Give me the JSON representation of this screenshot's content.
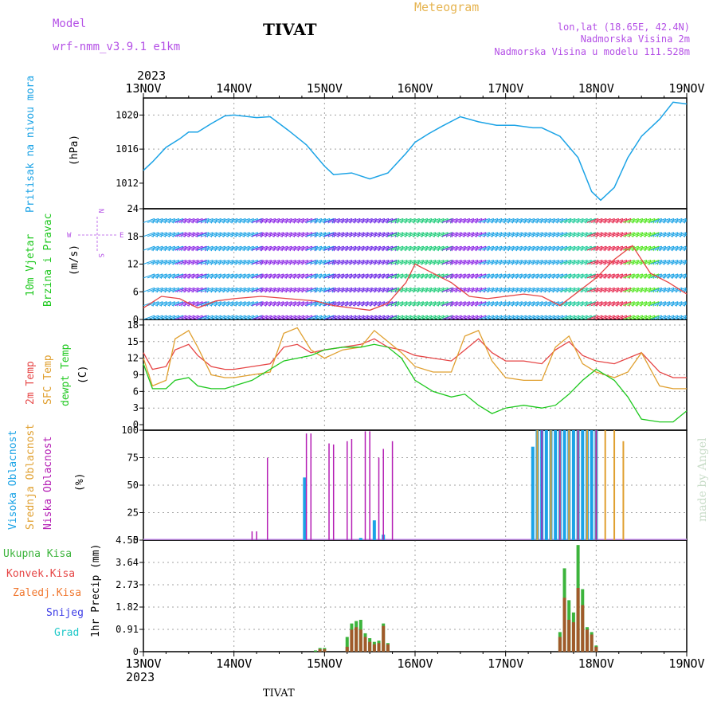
{
  "header": {
    "model_label": "Model",
    "model_name": "wrf-nmm_v3.9.1 e1km",
    "station": "TIVAT",
    "meteogram_label": "Meteogram",
    "coords": "lon,lat (18.65E, 42.4N)",
    "elevation": "Nadmorska Visina 2m",
    "model_elevation": "Nadmorska Visina u modelu 111.528m",
    "footer_station": "TIVAT",
    "watermark": "made by Angel"
  },
  "time_axis": {
    "year": "2023",
    "ticks": [
      "13NOV",
      "14NOV",
      "15NOV",
      "16NOV",
      "17NOV",
      "18NOV",
      "19NOV"
    ],
    "range_days": [
      0,
      6
    ]
  },
  "colors": {
    "pressure": "#1ba3e6",
    "temp2m": "#e64646",
    "sfc_temp": "#e0a030",
    "dewpoint": "#1ec81e",
    "visoka": "#1ba3e6",
    "srednja": "#e0a030",
    "niska": "#b41eb4",
    "ukupna": "#3cb43c",
    "konvek": "#e64646",
    "zaledj": "#f07830",
    "snijeg": "#3c3ce6",
    "grad": "#1ec8c8",
    "wind_title": "#1ec81e",
    "compass": "#b450e6",
    "model": "#b450e6",
    "meteogram": "#e6b450"
  },
  "panels": {
    "pressure": {
      "title": "Pritisak na nivou mora",
      "unit": "(hPa)",
      "ticks": [
        "1012",
        "1016",
        "1020"
      ]
    },
    "wind": {
      "title_line1": "10m Vjetar",
      "title_line2": "Brzina i Pravac",
      "unit": "(m/s)",
      "ticks": [
        "0",
        "6",
        "12",
        "18",
        "24"
      ],
      "compass": {
        "n": "N",
        "s": "S",
        "e": "E",
        "w": "W"
      }
    },
    "temperature": {
      "label_temp": "2m Temp",
      "label_sfc": "SFC Temp",
      "label_dew": "dewpt Temp",
      "unit": "(C)",
      "ticks": [
        "0",
        "3",
        "6",
        "9",
        "12",
        "15",
        "18"
      ]
    },
    "clouds": {
      "label_visoka": "Visoka Oblacnost",
      "label_srednja": "Srednja Oblacnost",
      "label_niska": "Niska Oblacnost",
      "unit": "(%)",
      "ticks": [
        "0",
        "25",
        "50",
        "75",
        "100"
      ]
    },
    "precip": {
      "label_ukupna": "Ukupna Kisa",
      "label_konvek": "Konvek.Kisa",
      "label_zaledj": "Zaledj.Kisa",
      "label_snijeg": "Snijeg",
      "label_grad": "Grad",
      "unit": "1hr Precip (mm)",
      "ticks": [
        "0",
        "0.91",
        "1.82",
        "2.73",
        "3.64",
        "4.55"
      ]
    }
  },
  "chart_data": [
    {
      "type": "line",
      "name": "pressure",
      "ylim": [
        1009,
        1022
      ],
      "x": [
        0,
        0.1,
        0.25,
        0.4,
        0.5,
        0.6,
        0.75,
        0.9,
        1.0,
        1.25,
        1.4,
        1.6,
        1.8,
        2.0,
        2.1,
        2.3,
        2.5,
        2.7,
        2.9,
        3.0,
        3.15,
        3.3,
        3.5,
        3.7,
        3.9,
        4.1,
        4.3,
        4.4,
        4.6,
        4.8,
        4.95,
        5.05,
        5.2,
        5.35,
        5.5,
        5.7,
        5.85,
        6.0
      ],
      "y": [
        1013.5,
        1014.5,
        1016.2,
        1017.2,
        1018.0,
        1018.0,
        1019.0,
        1019.9,
        1020.0,
        1019.7,
        1019.8,
        1018.2,
        1016.5,
        1014.0,
        1013.0,
        1013.2,
        1012.5,
        1013.2,
        1015.5,
        1016.8,
        1017.8,
        1018.7,
        1019.8,
        1019.2,
        1018.8,
        1018.8,
        1018.5,
        1018.5,
        1017.5,
        1015.0,
        1011.0,
        1010.0,
        1011.5,
        1015.0,
        1017.5,
        1019.5,
        1021.5,
        1021.3
      ]
    },
    {
      "type": "line",
      "name": "wind_speed",
      "ylim": [
        0,
        24
      ],
      "x": [
        0,
        0.2,
        0.4,
        0.6,
        0.8,
        1.0,
        1.3,
        1.6,
        1.9,
        2.1,
        2.3,
        2.5,
        2.7,
        2.9,
        3.0,
        3.2,
        3.4,
        3.6,
        3.8,
        4.0,
        4.2,
        4.4,
        4.6,
        4.8,
        5.0,
        5.2,
        5.4,
        5.6,
        5.8,
        6.0
      ],
      "y": [
        2.5,
        5.0,
        4.5,
        2.5,
        4.0,
        4.5,
        5.0,
        4.5,
        4.0,
        3.0,
        2.5,
        2.0,
        3.5,
        8.0,
        12.0,
        10.0,
        8.0,
        5.0,
        4.5,
        5.0,
        5.5,
        5.0,
        3.0,
        6.0,
        9.0,
        13.0,
        16.0,
        10.0,
        8.0,
        5.5
      ]
    },
    {
      "type": "line",
      "name": "temperatures",
      "ylim": [
        -1,
        19
      ],
      "x": [
        0,
        0.1,
        0.25,
        0.35,
        0.5,
        0.6,
        0.75,
        0.9,
        1.0,
        1.2,
        1.4,
        1.55,
        1.7,
        1.85,
        2.0,
        2.2,
        2.4,
        2.55,
        2.7,
        2.85,
        3.0,
        3.2,
        3.4,
        3.55,
        3.7,
        3.85,
        4.0,
        4.2,
        4.4,
        4.55,
        4.7,
        4.85,
        5.0,
        5.2,
        5.35,
        5.5,
        5.7,
        5.85,
        6.0
      ],
      "series": [
        {
          "name": "2m Temp",
          "values": [
            13.0,
            10.0,
            10.5,
            13.5,
            14.5,
            12.5,
            10.5,
            10.0,
            10.0,
            10.5,
            11.0,
            14.0,
            14.5,
            13.0,
            13.5,
            14.0,
            14.5,
            15.5,
            14.0,
            13.5,
            12.5,
            12.0,
            11.5,
            13.5,
            15.5,
            13.0,
            11.5,
            11.5,
            11.0,
            13.5,
            15.0,
            12.5,
            11.5,
            11.0,
            12.0,
            13.0,
            9.5,
            8.5,
            8.5
          ]
        },
        {
          "name": "SFC Temp",
          "values": [
            12.0,
            7.0,
            8.0,
            15.5,
            17.0,
            14.0,
            9.0,
            8.5,
            8.5,
            9.0,
            9.5,
            16.5,
            17.5,
            13.5,
            12.0,
            13.5,
            14.0,
            17.0,
            15.0,
            13.0,
            10.5,
            9.5,
            9.5,
            16.0,
            17.0,
            11.5,
            8.5,
            8.0,
            8.0,
            14.0,
            16.0,
            11.0,
            9.5,
            8.5,
            9.5,
            13.0,
            7.0,
            6.5,
            6.5
          ]
        },
        {
          "name": "dewpt Temp",
          "values": [
            11.0,
            6.5,
            6.5,
            8.0,
            8.5,
            7.0,
            6.5,
            6.5,
            7.0,
            8.0,
            10.0,
            11.5,
            12.0,
            12.5,
            13.5,
            14.0,
            14.0,
            14.5,
            14.0,
            12.0,
            8.0,
            6.0,
            5.0,
            5.5,
            3.5,
            2.0,
            3.0,
            3.5,
            3.0,
            3.5,
            5.5,
            8.0,
            10.0,
            8.0,
            5.0,
            1.0,
            0.5,
            0.5,
            2.5
          ]
        }
      ]
    },
    {
      "type": "bar",
      "name": "clouds",
      "ylim": [
        0,
        100
      ],
      "series": [
        {
          "name": "Visoka Oblacnost",
          "x": [
            1.78,
            2.4,
            2.55,
            2.65,
            4.3,
            4.35,
            4.4,
            4.45,
            4.5,
            4.55,
            4.6,
            4.65,
            4.7,
            4.75,
            4.8,
            4.85,
            4.9,
            4.95,
            5.0
          ],
          "values": [
            57,
            2,
            18,
            5,
            85,
            100,
            100,
            100,
            100,
            100,
            100,
            100,
            100,
            100,
            100,
            100,
            100,
            100,
            100
          ]
        },
        {
          "name": "Srednja Oblacnost",
          "x": [
            4.35,
            4.5,
            4.6,
            4.7,
            4.8,
            4.9,
            5.0,
            5.1,
            5.2,
            5.3
          ],
          "values": [
            100,
            100,
            100,
            100,
            100,
            100,
            100,
            100,
            100,
            90
          ]
        },
        {
          "name": "Niska Oblacnost",
          "x": [
            1.2,
            1.25,
            1.37,
            1.8,
            1.85,
            2.05,
            2.1,
            2.25,
            2.3,
            2.45,
            2.5,
            2.6,
            2.65,
            2.75,
            4.4,
            4.6,
            4.8,
            5.0
          ],
          "values": [
            8,
            8,
            75,
            97,
            97,
            88,
            87,
            90,
            92,
            99,
            99,
            75,
            83,
            90,
            100,
            100,
            100,
            100
          ]
        }
      ]
    },
    {
      "type": "bar",
      "name": "precip",
      "ylim": [
        0,
        4.55
      ],
      "x": [
        1.9,
        1.95,
        2.0,
        2.25,
        2.3,
        2.35,
        2.4,
        2.45,
        2.5,
        2.55,
        2.6,
        2.65,
        2.7,
        4.6,
        4.65,
        4.7,
        4.75,
        4.8,
        4.85,
        4.9,
        4.95,
        5.0
      ],
      "series": [
        {
          "name": "Ukupna Kisa",
          "values": [
            0.05,
            0.15,
            0.15,
            0.6,
            1.15,
            1.25,
            1.3,
            0.75,
            0.55,
            0.4,
            0.45,
            1.15,
            0.35,
            0.8,
            3.4,
            2.1,
            1.6,
            4.35,
            2.55,
            1.0,
            0.8,
            0.25
          ]
        },
        {
          "name": "Konvek.Kisa",
          "values": [
            0.0,
            0.1,
            0.1,
            0.2,
            0.9,
            1.0,
            0.9,
            0.6,
            0.4,
            0.3,
            0.35,
            1.05,
            0.3,
            0.6,
            2.2,
            1.3,
            1.2,
            2.6,
            1.9,
            0.9,
            0.7,
            0.2
          ]
        }
      ]
    }
  ]
}
